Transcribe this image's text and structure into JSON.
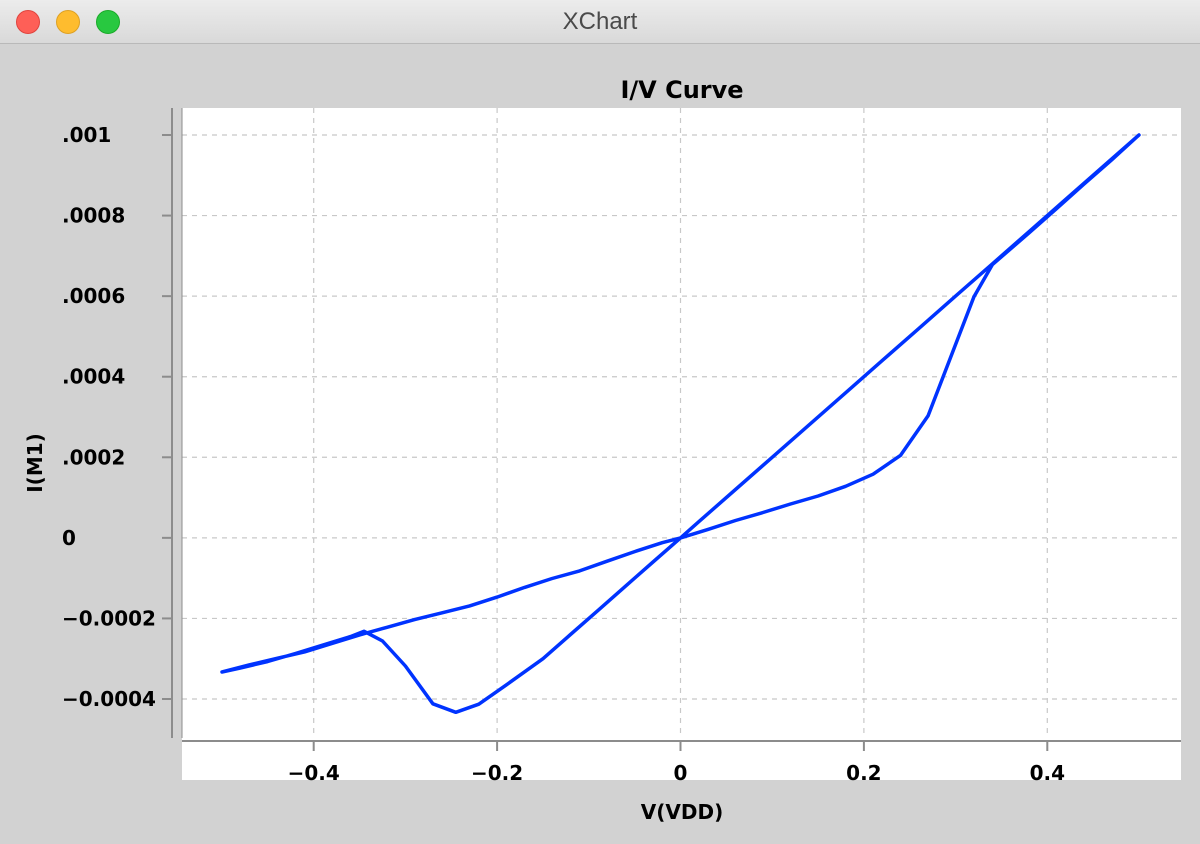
{
  "window": {
    "title": "XChart"
  },
  "colors": {
    "series": "#0033ff",
    "plot_background": "#ffffff",
    "grid": "#c8c8c8",
    "window_background": "#d2d2d2"
  },
  "chart_data": {
    "type": "line",
    "title": "I/V Curve",
    "xlabel": "V(VDD)",
    "ylabel": "I(M1)",
    "xlim": [
      -0.5,
      0.5
    ],
    "ylim": [
      -0.0004,
      0.001
    ],
    "grid": true,
    "x_ticks": [
      {
        "value": -0.4,
        "label": "−0.4"
      },
      {
        "value": -0.2,
        "label": "−0.2"
      },
      {
        "value": 0,
        "label": "0"
      },
      {
        "value": 0.2,
        "label": "0.2"
      },
      {
        "value": 0.4,
        "label": "0.4"
      }
    ],
    "y_ticks": [
      {
        "value": 0.001,
        "label": ".001"
      },
      {
        "value": 0.0008,
        "label": ".0008"
      },
      {
        "value": 0.0006,
        "label": ".0006"
      },
      {
        "value": 0.0004,
        "label": ".0004"
      },
      {
        "value": 0.0002,
        "label": ".0002"
      },
      {
        "value": 0,
        "label": "0"
      },
      {
        "value": -0.0002,
        "label": "−0.0002"
      },
      {
        "value": -0.0004,
        "label": "−0.0004"
      }
    ],
    "series": [
      {
        "name": "I(M1)",
        "x": [
          -0.5,
          -0.47,
          -0.44,
          -0.41,
          -0.38,
          -0.35,
          -0.32,
          -0.29,
          -0.26,
          -0.23,
          -0.2,
          -0.17,
          -0.14,
          -0.11,
          -0.08,
          -0.05,
          -0.02,
          0,
          0.03,
          0.06,
          0.09,
          0.12,
          0.15,
          0.18,
          0.21,
          0.24,
          0.27,
          0.32,
          0.34,
          0.38,
          0.41,
          0.44,
          0.47,
          0.5,
          0.46,
          0.42,
          0.38,
          0.34,
          0.3,
          0.26,
          0.22,
          0.18,
          0.14,
          0.1,
          0.06,
          0.02,
          0,
          -0.03,
          -0.06,
          -0.09,
          -0.12,
          -0.15,
          -0.19,
          -0.22,
          -0.245,
          -0.27,
          -0.3,
          -0.325,
          -0.345,
          -0.36,
          -0.39,
          -0.42,
          -0.45,
          -0.48,
          -0.5
        ],
        "y": [
          -0.000333,
          -0.000315,
          -0.000299,
          -0.000283,
          -0.000262,
          -0.000241,
          -0.000222,
          -0.000203,
          -0.000186,
          -0.000169,
          -0.000147,
          -0.000123,
          -0.000101,
          -8.2e-05,
          -5.8e-05,
          -3.4e-05,
          -1.2e-05,
          0,
          2.1e-05,
          4.3e-05,
          6.3e-05,
          8.4e-05,
          0.000104,
          0.000128,
          0.000158,
          0.000205,
          0.000303,
          0.000598,
          0.000678,
          0.000757,
          0.000817,
          0.000878,
          0.000938,
          0.001,
          0.00092,
          0.00084,
          0.00076,
          0.00068,
          0.0006,
          0.00052,
          0.00044,
          0.00036,
          0.00028,
          0.0002,
          0.00012,
          4e-05,
          0,
          -6e-05,
          -0.00012,
          -0.00018,
          -0.00024,
          -0.0003,
          -0.000365,
          -0.000413,
          -0.000433,
          -0.000412,
          -0.000318,
          -0.000256,
          -0.000232,
          -0.000245,
          -0.000266,
          -0.000287,
          -0.000307,
          -0.000323,
          -0.000333
        ]
      }
    ]
  }
}
